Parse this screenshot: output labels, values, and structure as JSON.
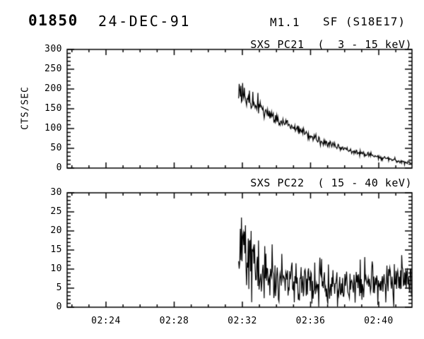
{
  "header": {
    "flare_id": "01850",
    "date": "24-DEC-91",
    "goes_class": "M1.1",
    "flare_type_location": "SF (S18E17)"
  },
  "colors": {
    "background": "#ffffff",
    "foreground": "#000000"
  },
  "time_axis": {
    "start_min": 21.72,
    "end_min": 41.95,
    "minor_tick_step_min": 1,
    "major_ticks": [
      {
        "minute": 24,
        "label": "02:24"
      },
      {
        "minute": 28,
        "label": "02:28"
      },
      {
        "minute": 32,
        "label": "02:32"
      },
      {
        "minute": 36,
        "label": "02:36"
      },
      {
        "minute": 40,
        "label": "02:40"
      }
    ]
  },
  "chart_data": [
    {
      "type": "line",
      "title": "SXS PC21  (  3 - 15 keV)",
      "detector": "SXS PC21",
      "energy_band": "3 - 15 keV",
      "ylabel": "CTS/SEC",
      "ylim": [
        0,
        300
      ],
      "yticks": [
        0,
        50,
        100,
        150,
        200,
        250,
        300
      ],
      "ytick_step": 50,
      "yminor_step": 10,
      "grid": false,
      "series": [
        {
          "name": "SXS PC21 counts",
          "start_min": 31.78,
          "end_min": 41.95,
          "sample_interval_sec": 2,
          "noise_coeff": 1.05,
          "control_points": [
            [
              31.78,
              176
            ],
            [
              32.0,
              172
            ],
            [
              32.4,
              166
            ],
            [
              32.8,
              157
            ],
            [
              33.2,
              147
            ],
            [
              33.6,
              136
            ],
            [
              34.0,
              125
            ],
            [
              34.4,
              114
            ],
            [
              34.7,
              108
            ],
            [
              35.0,
              103
            ],
            [
              35.3,
              97
            ],
            [
              35.7,
              89
            ],
            [
              36.0,
              81
            ],
            [
              36.4,
              73
            ],
            [
              36.8,
              66
            ],
            [
              37.2,
              60
            ],
            [
              37.6,
              54
            ],
            [
              38.0,
              48
            ],
            [
              38.4,
              43
            ],
            [
              38.8,
              39
            ],
            [
              39.2,
              34
            ],
            [
              39.6,
              31
            ],
            [
              40.0,
              27
            ],
            [
              40.4,
              24
            ],
            [
              40.8,
              21
            ],
            [
              41.2,
              17
            ],
            [
              41.6,
              14
            ],
            [
              41.95,
              12
            ]
          ],
          "spikes": [
            [
              31.8,
              213
            ],
            [
              31.86,
              199
            ],
            [
              31.93,
              208
            ],
            [
              32.02,
              215
            ],
            [
              32.12,
              203
            ],
            [
              32.42,
              196
            ],
            [
              32.62,
              193
            ],
            [
              32.9,
              190
            ]
          ]
        }
      ]
    },
    {
      "type": "line",
      "title": "SXS PC22  ( 15 - 40 keV)",
      "detector": "SXS PC22",
      "energy_band": "15 - 40 keV",
      "ylabel": "",
      "ylim": [
        0,
        30
      ],
      "yticks": [
        0,
        5,
        10,
        15,
        20,
        25,
        30
      ],
      "ytick_step": 5,
      "yminor_step": 1,
      "grid": false,
      "series": [
        {
          "name": "SXS PC22 counts",
          "start_min": 31.78,
          "end_min": 41.95,
          "sample_interval_sec": 2,
          "noise_coeff": 1.9,
          "control_points": [
            [
              31.78,
              11
            ],
            [
              31.9,
              13
            ],
            [
              32.1,
              13
            ],
            [
              32.4,
              11.5
            ],
            [
              32.8,
              10
            ],
            [
              33.2,
              9
            ],
            [
              33.6,
              8.3
            ],
            [
              34.0,
              7.6
            ],
            [
              34.5,
              7.0
            ],
            [
              35.0,
              6.6
            ],
            [
              35.5,
              6.6
            ],
            [
              36.0,
              6.4
            ],
            [
              36.5,
              6.0
            ],
            [
              37.0,
              5.6
            ],
            [
              37.5,
              5.2
            ],
            [
              38.0,
              5.4
            ],
            [
              38.5,
              5.8
            ],
            [
              39.0,
              6.2
            ],
            [
              39.3,
              6.4
            ],
            [
              39.7,
              5.9
            ],
            [
              40.0,
              5.6
            ],
            [
              40.3,
              5.9
            ],
            [
              40.7,
              6.1
            ],
            [
              41.0,
              5.7
            ],
            [
              41.4,
              5.6
            ],
            [
              41.95,
              6.0
            ]
          ],
          "spikes": [
            [
              31.96,
              23.5
            ],
            [
              32.05,
              19.5
            ],
            [
              32.18,
              21.5
            ],
            [
              32.35,
              18
            ],
            [
              32.5,
              20
            ],
            [
              32.72,
              16.5
            ],
            [
              32.95,
              17.5
            ],
            [
              33.3,
              16
            ],
            [
              33.75,
              16.5
            ],
            [
              34.3,
              14
            ],
            [
              36.55,
              13
            ],
            [
              38.9,
              12.5
            ],
            [
              39.6,
              12
            ]
          ]
        }
      ]
    }
  ]
}
